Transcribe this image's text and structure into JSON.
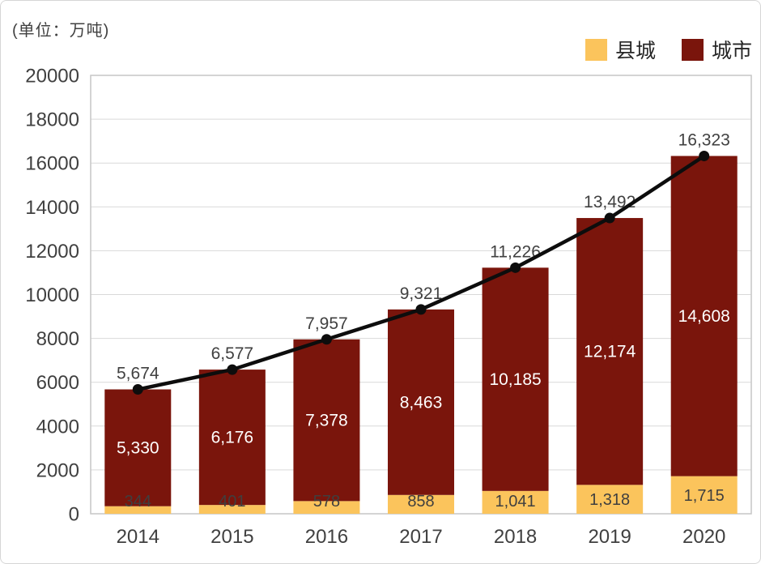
{
  "unit_label": "(单位：万吨)",
  "legend": [
    {
      "label": "县城",
      "color": "#FBC45C"
    },
    {
      "label": "城市",
      "color": "#7A150C"
    }
  ],
  "chart_data": {
    "type": "bar",
    "variant": "stacked-column-with-total-line",
    "unit_note": "(单位：万吨)",
    "categories": [
      "2014",
      "2015",
      "2016",
      "2017",
      "2018",
      "2019",
      "2020"
    ],
    "series": [
      {
        "name": "县城",
        "role": "bar-segment-bottom",
        "color": "#FBC45C",
        "values": [
          344,
          401,
          578,
          858,
          1041,
          1318,
          1715
        ]
      },
      {
        "name": "城市",
        "role": "bar-segment-top",
        "color": "#7A150C",
        "values": [
          5330,
          6176,
          7378,
          8463,
          10185,
          12174,
          14608
        ]
      }
    ],
    "line": {
      "role": "total-line",
      "color": "#0d0d0d",
      "values": [
        5674,
        6577,
        7957,
        9321,
        11226,
        13492,
        16323
      ]
    },
    "ylim": [
      0,
      20000
    ],
    "ytick_step": 2000,
    "grid": true,
    "legend_position": "top-right",
    "colors": {
      "grid": "#d9d9d9",
      "plot_border": "#c6c6c6",
      "axis_text": "#404040",
      "total_label": "#404040",
      "segment_label_dark": "#3f3f3f",
      "segment_label_light": "#ffffff"
    }
  }
}
